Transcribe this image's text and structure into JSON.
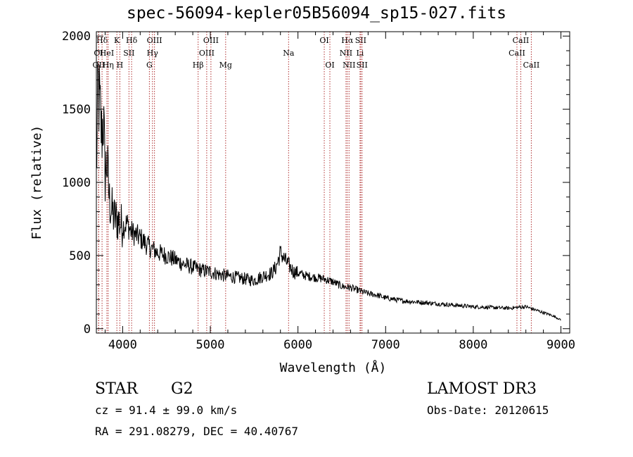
{
  "chart_data": {
    "type": "line",
    "title": "spec-56094-kepler05B56094_sp15-027.fits",
    "xlabel": "Wavelength (Å)",
    "ylabel": "Flux (relative)",
    "xlim": [
      3700,
      9100
    ],
    "ylim": [
      -30,
      2030
    ],
    "xticks": [
      4000,
      5000,
      6000,
      7000,
      8000,
      9000
    ],
    "yticks": [
      0,
      500,
      1000,
      1500,
      2000
    ],
    "line_color": "#000000",
    "marker_color": "#b03030",
    "series": [
      {
        "name": "flux",
        "x": [
          3700,
          3720,
          3740,
          3760,
          3780,
          3800,
          3820,
          3850,
          3880,
          3900,
          3950,
          4000,
          4050,
          4100,
          4150,
          4200,
          4300,
          4400,
          4500,
          4600,
          4700,
          4800,
          4900,
          5000,
          5100,
          5200,
          5300,
          5400,
          5500,
          5600,
          5700,
          5750,
          5800,
          5850,
          5900,
          5950,
          6000,
          6100,
          6200,
          6300,
          6400,
          6500,
          6600,
          6700,
          6800,
          6900,
          7000,
          7200,
          7400,
          7600,
          7800,
          8000,
          8200,
          8400,
          8600,
          8700,
          8800,
          8900,
          9000
        ],
        "y": [
          1050,
          1650,
          1500,
          1320,
          1450,
          1050,
          1150,
          870,
          800,
          760,
          740,
          700,
          720,
          660,
          640,
          620,
          560,
          520,
          500,
          470,
          440,
          420,
          400,
          390,
          370,
          360,
          350,
          340,
          330,
          360,
          380,
          420,
          520,
          470,
          430,
          390,
          380,
          360,
          350,
          340,
          320,
          290,
          280,
          260,
          240,
          230,
          210,
          190,
          180,
          170,
          160,
          150,
          145,
          140,
          150,
          130,
          110,
          90,
          60
        ]
      }
    ],
    "line_markers": [
      {
        "label": "Hδ",
        "x": 3765,
        "row": 1
      },
      {
        "label": "OI",
        "x": 3725,
        "row": 2
      },
      {
        "label": "OII",
        "x": 3727,
        "row": 3
      },
      {
        "label": "K",
        "x": 3934,
        "row": 1
      },
      {
        "label": "HeI",
        "x": 3820,
        "row": 2
      },
      {
        "label": "Hη",
        "x": 3835,
        "row": 3
      },
      {
        "label": "Hδ",
        "x": 4102,
        "row": 1
      },
      {
        "label": "SII",
        "x": 4072,
        "row": 2
      },
      {
        "label": "H",
        "x": 3968,
        "row": 3
      },
      {
        "label": "OIII",
        "x": 4363,
        "row": 1
      },
      {
        "label": "Hγ",
        "x": 4340,
        "row": 2
      },
      {
        "label": "G",
        "x": 4305,
        "row": 3
      },
      {
        "label": "OIII",
        "x": 5007,
        "row": 1
      },
      {
        "label": "OIII",
        "x": 4959,
        "row": 2
      },
      {
        "label": "Hβ",
        "x": 4861,
        "row": 3
      },
      {
        "label": "Mg",
        "x": 5175,
        "row": 3
      },
      {
        "label": "Na",
        "x": 5893,
        "row": 2
      },
      {
        "label": "OI",
        "x": 6300,
        "row": 1
      },
      {
        "label": "OI",
        "x": 6364,
        "row": 3
      },
      {
        "label": "Hα",
        "x": 6563,
        "row": 1
      },
      {
        "label": "NII",
        "x": 6548,
        "row": 2
      },
      {
        "label": "NII",
        "x": 6583,
        "row": 3
      },
      {
        "label": "SII",
        "x": 6716,
        "row": 1
      },
      {
        "label": "Li",
        "x": 6708,
        "row": 2
      },
      {
        "label": "SII",
        "x": 6731,
        "row": 3
      },
      {
        "label": "CaII",
        "x": 8542,
        "row": 1
      },
      {
        "label": "CaII",
        "x": 8498,
        "row": 2
      },
      {
        "label": "CaII",
        "x": 8662,
        "row": 3
      }
    ]
  },
  "info": {
    "object_class": "STAR",
    "subclass": "G2",
    "survey": "LAMOST DR3",
    "cz": "cz = 91.4 ± 99.0 km/s",
    "coords": "RA = 291.08279, DEC =  40.40767",
    "obs_date": "Obs-Date: 20120615"
  }
}
